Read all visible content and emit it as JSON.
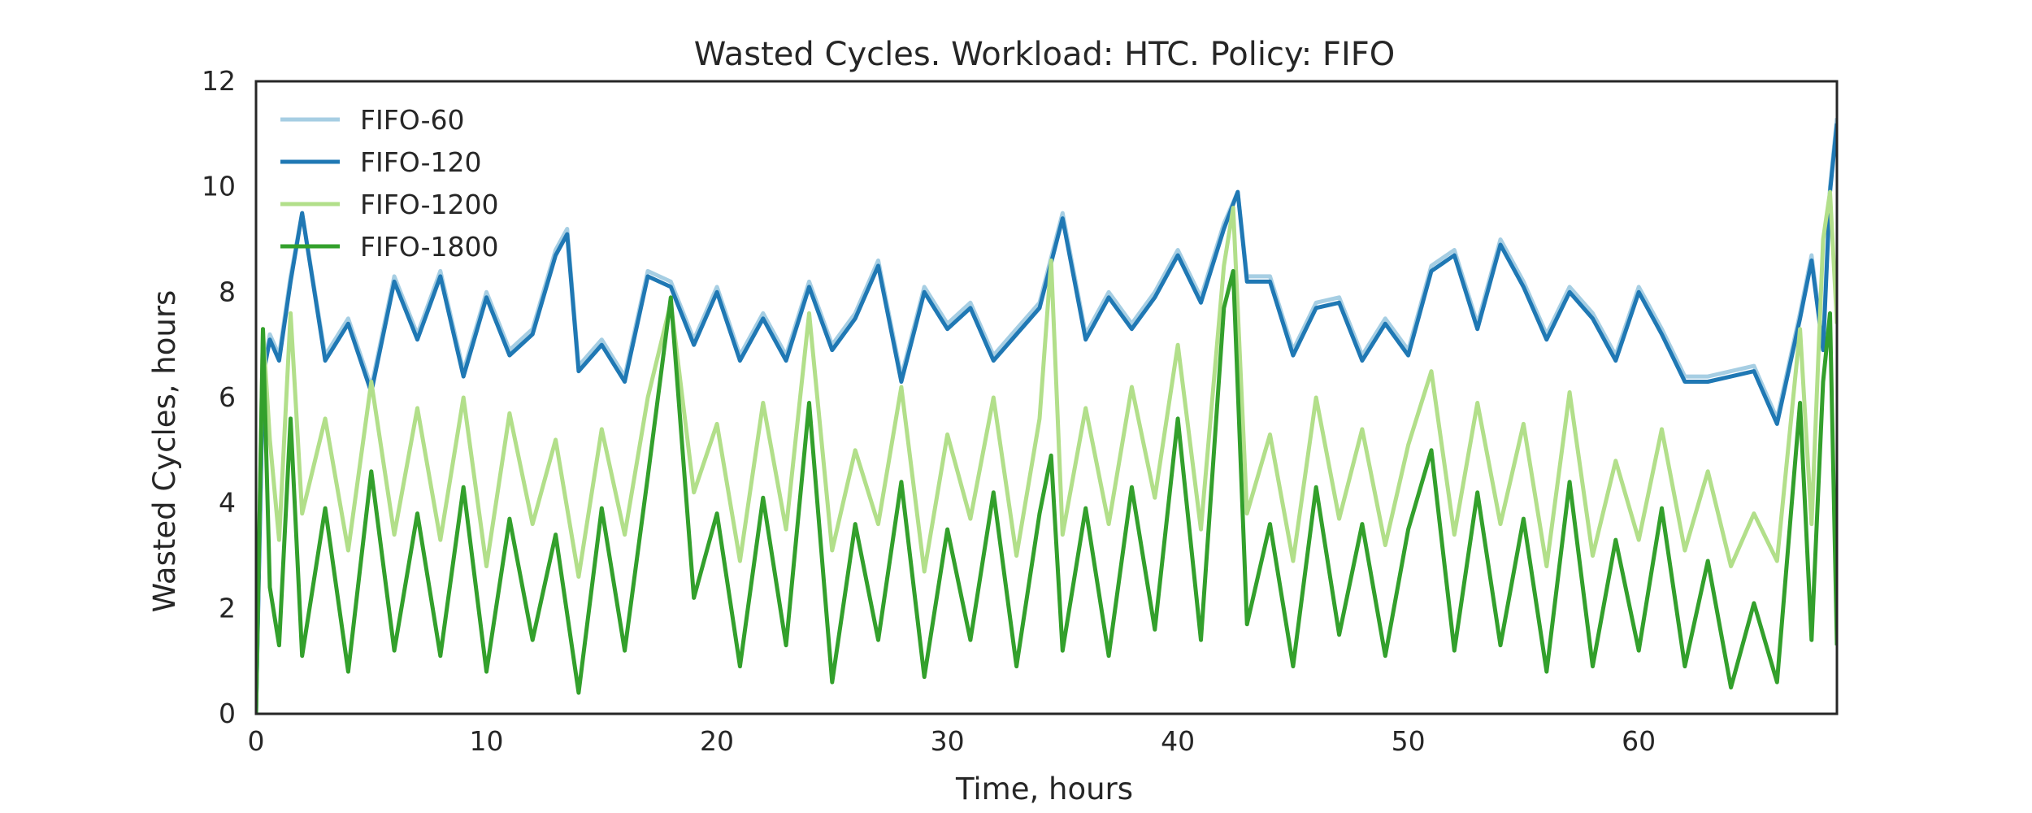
{
  "chart_data": {
    "type": "line",
    "title": "Wasted Cycles. Workload: HTC. Policy: FIFO",
    "xlabel": "Time, hours",
    "ylabel": "Wasted Cycles, hours",
    "xlim": [
      0,
      68.6
    ],
    "ylim": [
      0,
      12
    ],
    "x_ticks": [
      0,
      10,
      20,
      30,
      40,
      50,
      60
    ],
    "y_ticks": [
      0,
      2,
      4,
      6,
      8,
      10,
      12
    ],
    "grid": false,
    "legend_position": "top-left",
    "series": [
      {
        "name": "FIFO-60",
        "color": "#a6cee3",
        "x": [
          0,
          0.3,
          0.6,
          1,
          1.5,
          2,
          3,
          4,
          5,
          6,
          7,
          8,
          9,
          10,
          11,
          12,
          13,
          13.5,
          14,
          15,
          16,
          17,
          18,
          19,
          20,
          21,
          22,
          23,
          24,
          25,
          26,
          27,
          28,
          29,
          30,
          31,
          32,
          33,
          34,
          35,
          36,
          37,
          38,
          39,
          40,
          41,
          42,
          42.6,
          43,
          44,
          45,
          46,
          47,
          48,
          49,
          50,
          51,
          52,
          53,
          54,
          55,
          56,
          57,
          58,
          59,
          60,
          61,
          62,
          63,
          64,
          65,
          66,
          67,
          67.5,
          68,
          68.3,
          68.6
        ],
        "values": [
          0,
          6.5,
          7.2,
          6.8,
          8.3,
          9.5,
          6.8,
          7.5,
          6.2,
          8.3,
          7.2,
          8.4,
          6.5,
          8.0,
          6.9,
          7.3,
          8.8,
          9.2,
          6.6,
          7.1,
          6.4,
          8.4,
          8.2,
          7.1,
          8.1,
          6.8,
          7.6,
          6.8,
          8.2,
          7.0,
          7.6,
          8.6,
          6.4,
          8.1,
          7.4,
          7.8,
          6.8,
          7.3,
          7.8,
          9.5,
          7.2,
          8.0,
          7.4,
          8.0,
          8.8,
          7.9,
          9.3,
          9.9,
          8.3,
          8.3,
          6.9,
          7.8,
          7.9,
          6.8,
          7.5,
          6.9,
          8.5,
          8.8,
          7.4,
          9.0,
          8.2,
          7.2,
          8.1,
          7.6,
          6.8,
          8.1,
          7.3,
          6.4,
          6.4,
          6.5,
          6.6,
          5.6,
          7.6,
          8.7,
          7.0,
          10.0,
          11.3
        ]
      },
      {
        "name": "FIFO-120",
        "color": "#1f78b4",
        "x": [
          0,
          0.3,
          0.6,
          1,
          1.5,
          2,
          3,
          4,
          5,
          6,
          7,
          8,
          9,
          10,
          11,
          12,
          13,
          13.5,
          14,
          15,
          16,
          17,
          18,
          19,
          20,
          21,
          22,
          23,
          24,
          25,
          26,
          27,
          28,
          29,
          30,
          31,
          32,
          33,
          34,
          35,
          36,
          37,
          38,
          39,
          40,
          41,
          42,
          42.6,
          43,
          44,
          45,
          46,
          47,
          48,
          49,
          50,
          51,
          52,
          53,
          54,
          55,
          56,
          57,
          58,
          59,
          60,
          61,
          62,
          63,
          64,
          65,
          66,
          67,
          67.5,
          68,
          68.3,
          68.6
        ],
        "values": [
          0,
          6.4,
          7.1,
          6.7,
          8.2,
          9.5,
          6.7,
          7.4,
          6.1,
          8.2,
          7.1,
          8.3,
          6.4,
          7.9,
          6.8,
          7.2,
          8.7,
          9.1,
          6.5,
          7.0,
          6.3,
          8.3,
          8.1,
          7.0,
          8.0,
          6.7,
          7.5,
          6.7,
          8.1,
          6.9,
          7.5,
          8.5,
          6.3,
          8.0,
          7.3,
          7.7,
          6.7,
          7.2,
          7.7,
          9.4,
          7.1,
          7.9,
          7.3,
          7.9,
          8.7,
          7.8,
          9.2,
          9.9,
          8.2,
          8.2,
          6.8,
          7.7,
          7.8,
          6.7,
          7.4,
          6.8,
          8.4,
          8.7,
          7.3,
          8.9,
          8.1,
          7.1,
          8.0,
          7.5,
          6.7,
          8.0,
          7.2,
          6.3,
          6.3,
          6.4,
          6.5,
          5.5,
          7.5,
          8.6,
          6.9,
          9.9,
          11.2
        ]
      },
      {
        "name": "FIFO-1200",
        "color": "#b2df8a",
        "x": [
          0,
          0.3,
          0.6,
          1,
          1.5,
          2,
          3,
          4,
          5,
          6,
          7,
          8,
          9,
          10,
          11,
          12,
          13,
          14,
          15,
          16,
          17,
          18,
          19,
          20,
          21,
          22,
          23,
          24,
          25,
          26,
          27,
          28,
          29,
          30,
          31,
          32,
          33,
          34,
          34.5,
          35,
          36,
          37,
          38,
          39,
          40,
          41,
          42,
          42.4,
          43,
          44,
          45,
          46,
          47,
          48,
          49,
          50,
          51,
          52,
          53,
          54,
          55,
          56,
          57,
          58,
          59,
          60,
          61,
          62,
          63,
          64,
          65,
          66,
          67,
          67.5,
          68,
          68.3,
          68.6
        ],
        "values": [
          0,
          7.3,
          5.2,
          3.3,
          7.6,
          3.8,
          5.6,
          3.1,
          6.3,
          3.4,
          5.8,
          3.3,
          6.0,
          2.8,
          5.7,
          3.6,
          5.2,
          2.6,
          5.4,
          3.4,
          6.0,
          7.8,
          4.2,
          5.5,
          2.9,
          5.9,
          3.5,
          7.6,
          3.1,
          5.0,
          3.6,
          6.2,
          2.7,
          5.3,
          3.7,
          6.0,
          3.0,
          5.6,
          8.6,
          3.4,
          5.8,
          3.6,
          6.2,
          4.1,
          7.0,
          3.5,
          8.5,
          9.6,
          3.8,
          5.3,
          2.9,
          6.0,
          3.7,
          5.4,
          3.2,
          5.1,
          6.5,
          3.4,
          5.9,
          3.6,
          5.5,
          2.8,
          6.1,
          3.0,
          4.8,
          3.3,
          5.4,
          3.1,
          4.6,
          2.8,
          3.8,
          2.9,
          7.3,
          3.6,
          9.0,
          9.9,
          7.4
        ]
      },
      {
        "name": "FIFO-1800",
        "color": "#33a02c",
        "x": [
          0,
          0.3,
          0.6,
          1,
          1.5,
          2,
          3,
          4,
          5,
          6,
          7,
          8,
          9,
          10,
          11,
          12,
          13,
          14,
          15,
          16,
          17,
          18,
          19,
          20,
          21,
          22,
          23,
          24,
          25,
          26,
          27,
          28,
          29,
          30,
          31,
          32,
          33,
          34,
          34.5,
          35,
          36,
          37,
          38,
          39,
          40,
          41,
          42,
          42.4,
          43,
          44,
          45,
          46,
          47,
          48,
          49,
          50,
          51,
          52,
          53,
          54,
          55,
          56,
          57,
          58,
          59,
          60,
          61,
          62,
          63,
          64,
          65,
          66,
          67,
          67.5,
          68,
          68.3,
          68.6
        ],
        "values": [
          0,
          7.3,
          2.4,
          1.3,
          5.6,
          1.1,
          3.9,
          0.8,
          4.6,
          1.2,
          3.8,
          1.1,
          4.3,
          0.8,
          3.7,
          1.4,
          3.4,
          0.4,
          3.9,
          1.2,
          4.5,
          7.9,
          2.2,
          3.8,
          0.9,
          4.1,
          1.3,
          5.9,
          0.6,
          3.6,
          1.4,
          4.4,
          0.7,
          3.5,
          1.4,
          4.2,
          0.9,
          3.8,
          4.9,
          1.2,
          3.9,
          1.1,
          4.3,
          1.6,
          5.6,
          1.4,
          7.7,
          8.4,
          1.7,
          3.6,
          0.9,
          4.3,
          1.5,
          3.6,
          1.1,
          3.5,
          5.0,
          1.2,
          4.2,
          1.3,
          3.7,
          0.8,
          4.4,
          0.9,
          3.3,
          1.2,
          3.9,
          0.9,
          2.9,
          0.5,
          2.1,
          0.6,
          5.9,
          1.4,
          6.3,
          7.6,
          1.3
        ]
      }
    ]
  }
}
